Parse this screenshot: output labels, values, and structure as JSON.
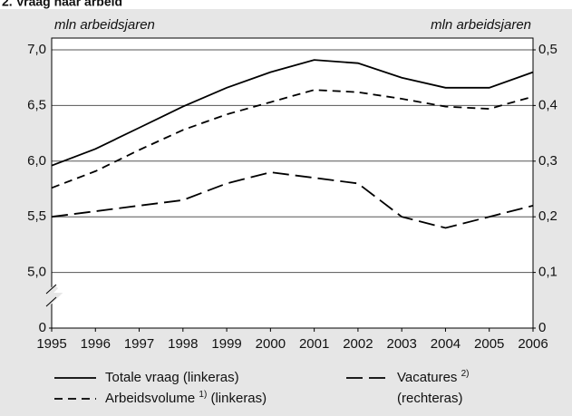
{
  "chart_data": {
    "type": "line",
    "title": "2. Vraag naar arbeid",
    "ylabel": "mln arbeidsjaren",
    "y2label": "mln arbeidsjaren",
    "x": [
      1995,
      1996,
      1997,
      1998,
      1999,
      2000,
      2001,
      2002,
      2003,
      2004,
      2005,
      2006
    ],
    "xlim": [
      1995,
      2006
    ],
    "xticks": [
      1995,
      1996,
      1997,
      1998,
      1999,
      2000,
      2001,
      2002,
      2003,
      2004,
      2005,
      2006
    ],
    "ylim": [
      5.0,
      7.0
    ],
    "axis_break": true,
    "yticks": [
      {
        "value": 0,
        "label": "0"
      },
      {
        "value": 5.0,
        "label": "5,0"
      },
      {
        "value": 5.5,
        "label": "5,5"
      },
      {
        "value": 6.0,
        "label": "6,0"
      },
      {
        "value": 6.5,
        "label": "6,5"
      },
      {
        "value": 7.0,
        "label": "7,0"
      }
    ],
    "y2lim": [
      0,
      0.5
    ],
    "y2ticks": [
      {
        "value": 0,
        "label": "0"
      },
      {
        "value": 0.1,
        "label": "0,1"
      },
      {
        "value": 0.2,
        "label": "0,2"
      },
      {
        "value": 0.3,
        "label": "0,3"
      },
      {
        "value": 0.4,
        "label": "0,4"
      },
      {
        "value": 0.5,
        "label": "0,5"
      }
    ],
    "grid": true,
    "series": [
      {
        "name": "Totale vraag",
        "axis_label": "(linkeras)",
        "color": "#000000",
        "dash": "solid",
        "values": [
          5.96,
          6.11,
          6.3,
          6.49,
          6.66,
          6.8,
          6.91,
          6.88,
          6.75,
          6.66,
          6.66,
          6.8
        ]
      },
      {
        "name": "Arbeidsvolume",
        "note_ref": "1)",
        "axis_label": "(linkeras)",
        "color": "#000000",
        "dash": "short",
        "values": [
          5.76,
          5.91,
          6.1,
          6.28,
          6.42,
          6.53,
          6.64,
          6.62,
          6.56,
          6.49,
          6.47,
          6.58
        ]
      },
      {
        "name": "Vacatures",
        "note_ref": "2)",
        "axis_label": "(rechteras)",
        "color": "#000000",
        "dash": "long",
        "axis": "y2",
        "values": [
          0.2,
          0.21,
          0.22,
          0.23,
          0.26,
          0.28,
          0.27,
          0.26,
          0.2,
          0.18,
          0.2,
          0.22
        ]
      }
    ]
  }
}
